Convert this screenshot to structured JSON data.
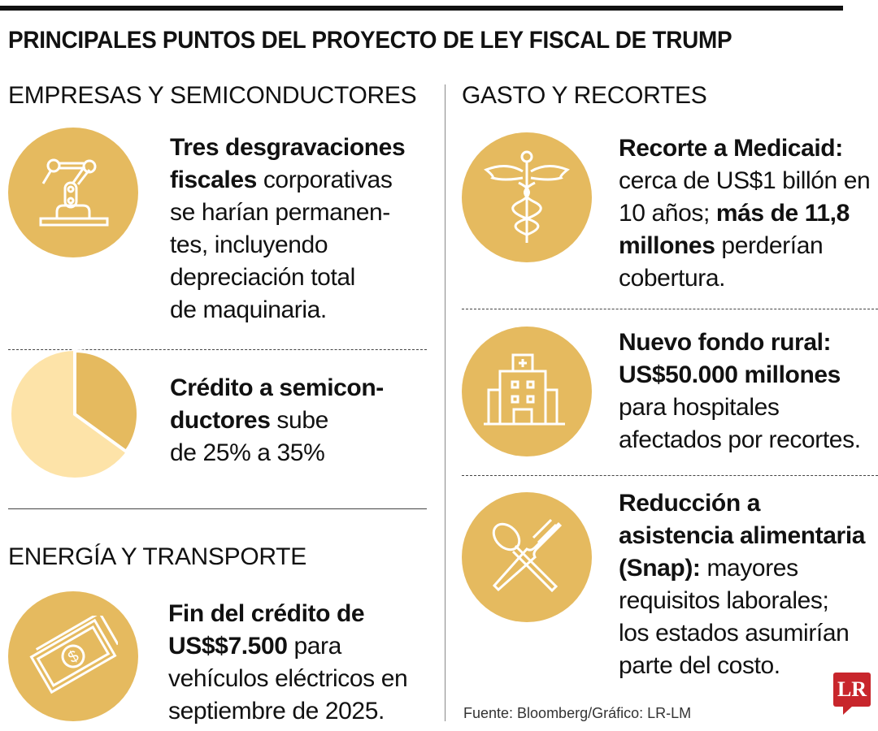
{
  "title": "PRINCIPALES PUNTOS DEL PROYECTO DE LEY FISCAL DE TRUMP",
  "sections": {
    "empresas": "EMPRESAS Y SEMICONDUCTORES",
    "energia": "ENERGÍA Y TRANSPORTE",
    "gasto": "GASTO Y RECORTES"
  },
  "colors": {
    "circle": "#e5ba5f",
    "pie_light": "#fde3a8",
    "pie_dark": "#e5ba5f",
    "logo": "#c8262c"
  },
  "items": {
    "desgravaciones": {
      "icon": "robot-arm-icon",
      "lines": [
        [
          {
            "t": "Tres desgravaciones",
            "b": true
          }
        ],
        [
          {
            "t": "fiscales",
            "b": true
          },
          {
            "t": " corporativas"
          }
        ],
        [
          {
            "t": "se harían permanen-"
          }
        ],
        [
          {
            "t": "tes, incluyendo"
          }
        ],
        [
          {
            "t": "depreciación total"
          }
        ],
        [
          {
            "t": "de maquinaria."
          }
        ]
      ]
    },
    "semiconductores": {
      "icon": "pie-chart-icon",
      "pie": {
        "from_percent": 25,
        "to_percent": 35
      },
      "lines": [
        [
          {
            "t": "Crédito a semicon-",
            "b": true
          }
        ],
        [
          {
            "t": "ductores",
            "b": true
          },
          {
            "t": " sube"
          }
        ],
        [
          {
            "t": "de 25% a 35%"
          }
        ]
      ]
    },
    "vehiculos": {
      "icon": "money-bill-icon",
      "lines": [
        [
          {
            "t": "Fin del crédito de",
            "b": true
          }
        ],
        [
          {
            "t": "US$$7.500",
            "b": true
          },
          {
            "t": " para"
          }
        ],
        [
          {
            "t": "vehículos eléctricos en"
          }
        ],
        [
          {
            "t": "septiembre de 2025."
          }
        ]
      ]
    },
    "medicaid": {
      "icon": "caduceus-icon",
      "lines": [
        [
          {
            "t": "Recorte a Medicaid:",
            "b": true
          }
        ],
        [
          {
            "t": "cerca de US$1 billón en"
          }
        ],
        [
          {
            "t": "10 años; "
          },
          {
            "t": "más de 11,8",
            "b": true
          }
        ],
        [
          {
            "t": "millones",
            "b": true
          },
          {
            "t": " perderían"
          }
        ],
        [
          {
            "t": "cobertura."
          }
        ]
      ]
    },
    "rural": {
      "icon": "hospital-icon",
      "lines": [
        [
          {
            "t": "Nuevo fondo rural:",
            "b": true
          }
        ],
        [
          {
            "t": "US$50.000 millones",
            "b": true
          }
        ],
        [
          {
            "t": "para hospitales"
          }
        ],
        [
          {
            "t": "afectados por recortes."
          }
        ]
      ]
    },
    "snap": {
      "icon": "fork-spoon-icon",
      "lines": [
        [
          {
            "t": "Reducción a",
            "b": true
          }
        ],
        [
          {
            "t": "asistencia alimentaria",
            "b": true
          }
        ],
        [
          {
            "t": "(Snap):",
            "b": true
          },
          {
            "t": " mayores"
          }
        ],
        [
          {
            "t": "requisitos laborales;"
          }
        ],
        [
          {
            "t": "los estados asumirían"
          }
        ],
        [
          {
            "t": "parte del costo."
          }
        ]
      ]
    }
  },
  "source": "Fuente: Bloomberg/Gráfico: LR-LM",
  "logo": "LR"
}
